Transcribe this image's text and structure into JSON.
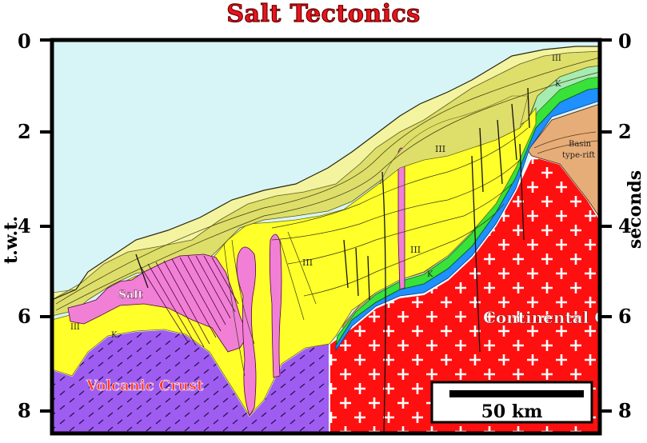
{
  "title": "Salt Tectonics",
  "axis": {
    "left_title": "t.w.t.",
    "right_title": "seconds",
    "ticks_left": [
      "0",
      "2",
      "4",
      "6",
      "8"
    ],
    "ticks_right": [
      "0",
      "2",
      "4",
      "6",
      "8"
    ]
  },
  "labels": {
    "salt": "Salt",
    "iii_left": "III",
    "k_left": "K",
    "iii_middle": "III",
    "iii_center": "III",
    "k_center": "K",
    "iii_upper": "III",
    "iii_top": "III",
    "k_top": "K",
    "basin_line1": "Basin",
    "basin_line2": "type-rift",
    "volcanic_crust": "Volcanic Crust",
    "continental_crust": "Continental Crust",
    "scale_bar": "50 km"
  },
  "colors": {
    "sea": "#d7f4f7",
    "volcanic": "#9e5df0",
    "continental": "#ff1010",
    "salt": "#f27fd6",
    "yellow": "#ffff2a",
    "olive": "#dede6a",
    "light_yellow": "#f4f4a0",
    "green": "#38e238",
    "blue": "#1e90ff",
    "orange": "#f2b85c",
    "basin": "#e7ad78",
    "title": "#e8141d"
  }
}
